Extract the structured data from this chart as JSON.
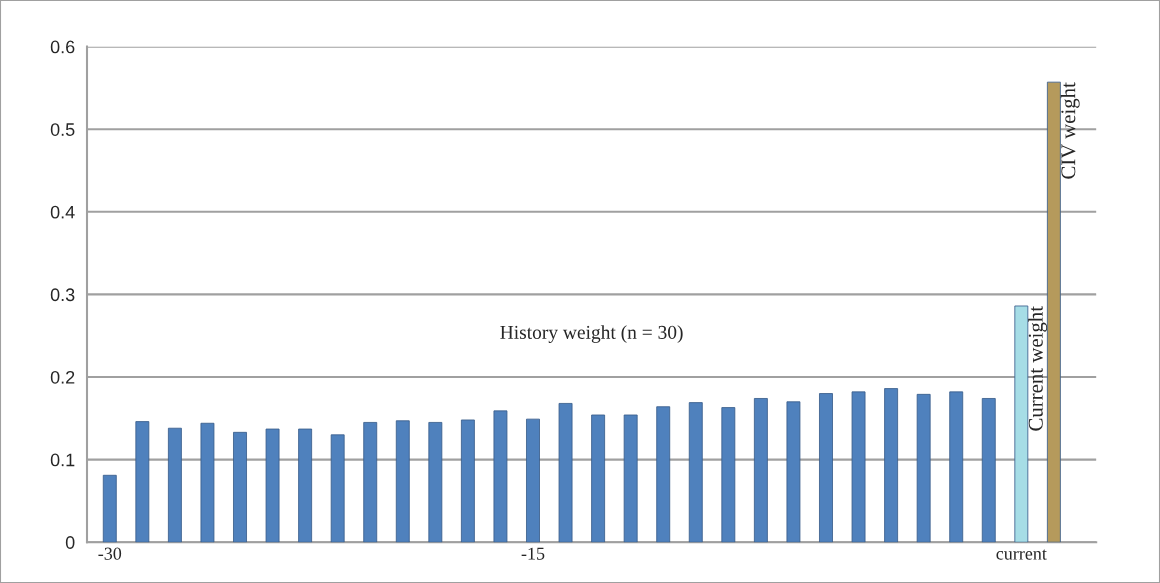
{
  "chart_data": {
    "type": "bar",
    "categories": [
      "-30",
      null,
      null,
      null,
      null,
      null,
      null,
      null,
      null,
      null,
      null,
      null,
      null,
      "-15",
      null,
      null,
      null,
      null,
      null,
      null,
      null,
      null,
      null,
      null,
      null,
      null,
      null,
      null,
      "current",
      null
    ],
    "values": [
      0.081,
      0.146,
      0.138,
      0.144,
      0.133,
      0.137,
      0.137,
      0.13,
      0.145,
      0.147,
      0.145,
      0.148,
      0.159,
      0.149,
      0.168,
      0.154,
      0.154,
      0.164,
      0.169,
      0.163,
      0.174,
      0.17,
      0.18,
      0.182,
      0.186,
      0.179,
      0.182,
      0.174,
      0.286,
      0.557
    ],
    "colors": [
      "#4f81bd",
      "#4f81bd",
      "#4f81bd",
      "#4f81bd",
      "#4f81bd",
      "#4f81bd",
      "#4f81bd",
      "#4f81bd",
      "#4f81bd",
      "#4f81bd",
      "#4f81bd",
      "#4f81bd",
      "#4f81bd",
      "#4f81bd",
      "#4f81bd",
      "#4f81bd",
      "#4f81bd",
      "#4f81bd",
      "#4f81bd",
      "#4f81bd",
      "#4f81bd",
      "#4f81bd",
      "#4f81bd",
      "#4f81bd",
      "#4f81bd",
      "#4f81bd",
      "#4f81bd",
      "#4f81bd",
      "#a6dde6",
      "#b59a5c"
    ],
    "value_labels": [
      null,
      null,
      null,
      null,
      null,
      null,
      null,
      null,
      null,
      null,
      null,
      null,
      null,
      null,
      null,
      null,
      null,
      null,
      null,
      null,
      null,
      null,
      null,
      null,
      null,
      null,
      null,
      null,
      "Current weight",
      "CIV weight"
    ],
    "annotations": [
      "History weight (n = 30)"
    ],
    "ylim": [
      0,
      0.6
    ],
    "yticks": [
      0,
      0.1,
      0.2,
      0.3,
      0.4,
      0.5,
      0.6
    ],
    "grid": "y",
    "legend": false
  }
}
